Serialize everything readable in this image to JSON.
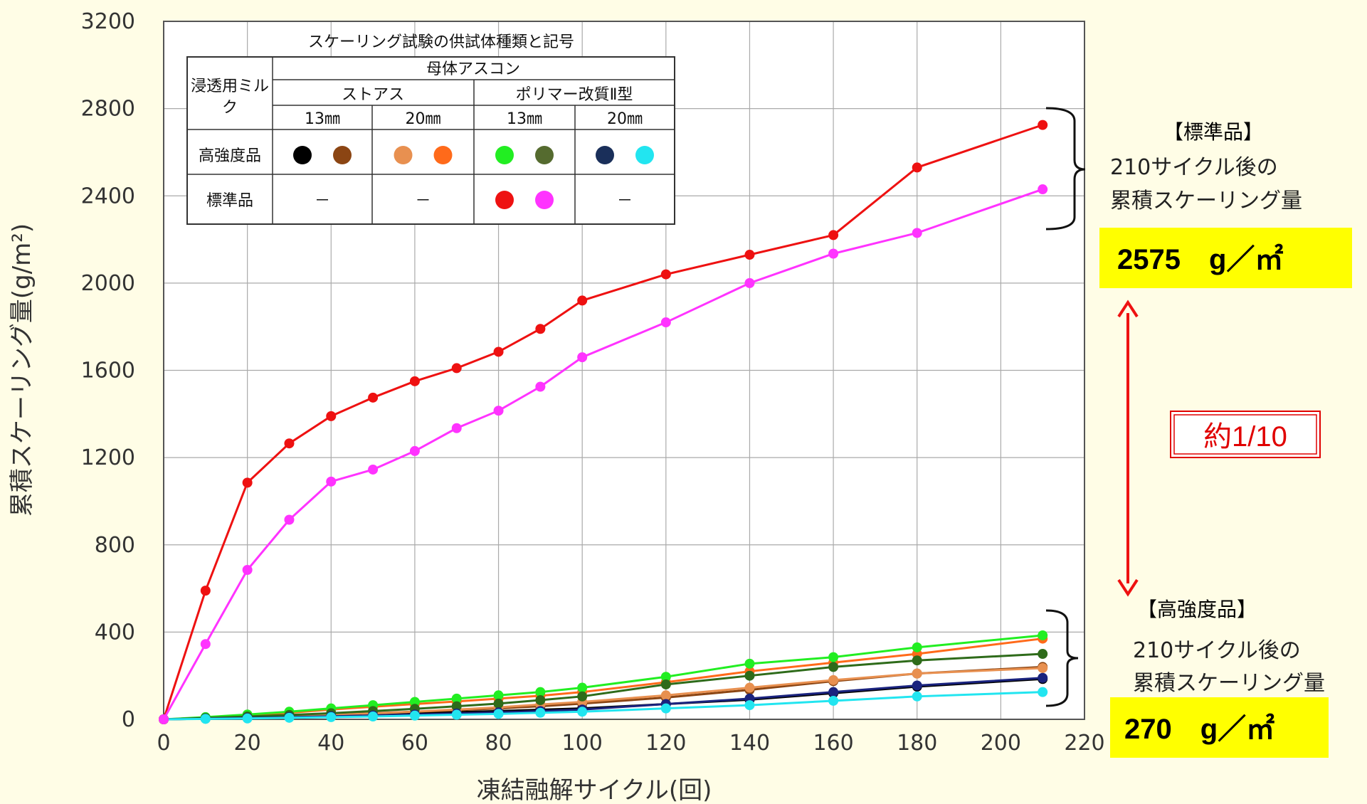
{
  "chart_data": {
    "type": "line",
    "xlabel": "凍結融解サイクル(回)",
    "ylabel": "累積スケーリング量(g/m²)",
    "xlim": [
      0,
      220
    ],
    "ylim": [
      0,
      3200
    ],
    "xticks": [
      0,
      20,
      40,
      60,
      80,
      100,
      120,
      140,
      160,
      180,
      200,
      220
    ],
    "yticks": [
      0,
      400,
      800,
      1200,
      1600,
      2000,
      2400,
      2800,
      3200
    ],
    "grid": true,
    "series": [
      {
        "color": "#000000",
        "x": [
          0,
          10,
          20,
          30,
          40,
          50,
          60,
          70,
          80,
          90,
          100,
          120,
          140,
          160,
          180,
          210
        ],
        "y": [
          0,
          3,
          8,
          12,
          17,
          22,
          28,
          33,
          38,
          44,
          50,
          70,
          90,
          120,
          150,
          185
        ]
      },
      {
        "color": "#8b4513",
        "x": [
          0,
          10,
          20,
          30,
          40,
          50,
          60,
          70,
          80,
          90,
          100,
          120,
          140,
          160,
          180,
          210
        ],
        "y": [
          0,
          5,
          10,
          16,
          22,
          28,
          35,
          42,
          50,
          60,
          72,
          100,
          135,
          175,
          210,
          240
        ]
      },
      {
        "color": "#e89050",
        "x": [
          0,
          10,
          20,
          30,
          40,
          50,
          60,
          70,
          80,
          90,
          100,
          120,
          140,
          160,
          180,
          210
        ],
        "y": [
          0,
          4,
          9,
          14,
          20,
          27,
          35,
          45,
          55,
          68,
          80,
          110,
          145,
          180,
          210,
          235
        ]
      },
      {
        "color": "#ff6a1a",
        "x": [
          0,
          10,
          20,
          30,
          40,
          50,
          60,
          70,
          80,
          90,
          100,
          120,
          140,
          160,
          180,
          210
        ],
        "y": [
          0,
          8,
          18,
          30,
          45,
          58,
          70,
          82,
          95,
          108,
          125,
          170,
          220,
          260,
          300,
          370
        ]
      },
      {
        "color": "#22ee22",
        "x": [
          0,
          10,
          20,
          30,
          40,
          50,
          60,
          70,
          80,
          90,
          100,
          120,
          140,
          160,
          180,
          210
        ],
        "y": [
          0,
          10,
          22,
          35,
          50,
          65,
          80,
          95,
          110,
          125,
          145,
          195,
          255,
          285,
          330,
          385
        ]
      },
      {
        "color": "#2e6b1a",
        "x": [
          0,
          10,
          20,
          30,
          40,
          50,
          60,
          70,
          80,
          90,
          100,
          120,
          140,
          160,
          180,
          210
        ],
        "y": [
          0,
          6,
          13,
          20,
          28,
          38,
          48,
          60,
          72,
          88,
          105,
          160,
          200,
          240,
          270,
          300
        ]
      },
      {
        "color": "#1a237e",
        "x": [
          0,
          10,
          20,
          30,
          40,
          50,
          60,
          70,
          80,
          90,
          100,
          120,
          140,
          160,
          180,
          210
        ],
        "y": [
          0,
          3,
          6,
          10,
          14,
          18,
          22,
          27,
          32,
          38,
          45,
          70,
          95,
          125,
          155,
          190
        ]
      },
      {
        "color": "#22e5f0",
        "x": [
          0,
          10,
          20,
          30,
          40,
          50,
          60,
          70,
          80,
          90,
          100,
          120,
          140,
          160,
          180,
          210
        ],
        "y": [
          0,
          2,
          4,
          7,
          10,
          13,
          17,
          21,
          25,
          30,
          35,
          50,
          65,
          85,
          105,
          125
        ]
      },
      {
        "color": "#ee1111",
        "x": [
          0,
          10,
          20,
          30,
          40,
          50,
          60,
          70,
          80,
          90,
          100,
          120,
          140,
          160,
          180,
          210
        ],
        "y": [
          0,
          590,
          1085,
          1265,
          1390,
          1475,
          1550,
          1610,
          1685,
          1790,
          1920,
          2040,
          2130,
          2220,
          2530,
          2725
        ]
      },
      {
        "color": "#ff33ff",
        "x": [
          0,
          10,
          20,
          30,
          40,
          50,
          60,
          70,
          80,
          90,
          100,
          120,
          140,
          160,
          180,
          210
        ],
        "y": [
          0,
          345,
          685,
          915,
          1090,
          1145,
          1230,
          1335,
          1415,
          1525,
          1660,
          1820,
          2000,
          2135,
          2230,
          2430
        ]
      }
    ],
    "legend": {
      "title": "スケーリング試験の供試体種類と記号",
      "row_header": "浸透用ミルク",
      "parent_header": "母体アスコン",
      "groups": [
        "ストアス",
        "ポリマー改質Ⅱ型"
      ],
      "sizes": [
        "13㎜",
        "20㎜",
        "13㎜",
        "20㎜"
      ],
      "rows": [
        {
          "label": "高強度品",
          "cells": [
            {
              "colors": [
                "#000000",
                "#8b4513"
              ]
            },
            {
              "colors": [
                "#e89050",
                "#ff6a1a"
              ]
            },
            {
              "colors": [
                "#22ee22",
                "#556b2f"
              ]
            },
            {
              "colors": [
                "#1a2f5a",
                "#22e5f0"
              ]
            }
          ]
        },
        {
          "label": "標準品",
          "cells": [
            {
              "text": "－"
            },
            {
              "text": "－"
            },
            {
              "colors": [
                "#ee1111",
                "#ff33ff"
              ]
            },
            {
              "text": "－"
            }
          ]
        }
      ],
      "placement": "top-left"
    },
    "annotations": {
      "standard": {
        "heading": "【標準品】",
        "line1": "210サイクル後の",
        "line2": "累積スケーリング量",
        "value": "2575　g／㎡"
      },
      "high": {
        "heading": "【高強度品】",
        "line1": "210サイクル後の",
        "line2": "累積スケーリング量",
        "value": "270　g／㎡"
      },
      "ratio": "約1/10"
    },
    "colors": {
      "highlight": "#ffff00",
      "ratio_text": "#e00000",
      "background": "#fffde6"
    }
  }
}
